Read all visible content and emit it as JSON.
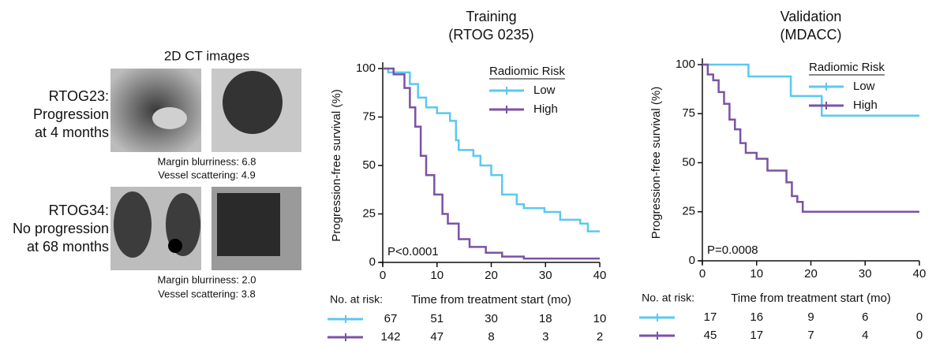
{
  "left_panel": {
    "title": "2D CT images",
    "cases": [
      {
        "label": [
          "RTOG23:",
          "Progression",
          "at 4 months"
        ],
        "features": [
          "Margin blurriness: 6.8",
          "Vessel scattering: 4.9"
        ]
      },
      {
        "label": [
          "RTOG34:",
          "No progression",
          "at 68 months"
        ],
        "features": [
          "Margin blurriness: 2.0",
          "Vessel scattering: 3.8"
        ]
      }
    ]
  },
  "chart_data": [
    {
      "type": "line",
      "step": true,
      "title": [
        "Training",
        "(RTOG 0235)"
      ],
      "x_label": "Time from treatment start (mo)",
      "y_label": "Progression-free survival (%)",
      "xlim": [
        0,
        40
      ],
      "ylim": [
        0,
        100
      ],
      "xticks": [
        0,
        10,
        20,
        30,
        40
      ],
      "yticks": [
        0,
        25,
        50,
        75,
        100
      ],
      "legend_title": "Radiomic Risk",
      "annotation": "P<0.0001",
      "series": [
        {
          "name": "Low",
          "color": "#5bc8f0",
          "x": [
            0,
            1,
            1,
            5,
            5,
            6.5,
            6.5,
            8,
            8,
            10,
            10,
            12.4,
            12.4,
            13.5,
            13.5,
            14,
            14,
            16.7,
            16.7,
            18,
            18,
            20,
            20,
            22,
            22,
            24.7,
            24.7,
            26,
            26,
            29.8,
            29.8,
            32.7,
            32.7,
            36.4,
            36.4,
            37.8,
            37.8,
            40
          ],
          "values": [
            100,
            100,
            98,
            98,
            92,
            92,
            85,
            85,
            80,
            80,
            77,
            77,
            73,
            73,
            63,
            63,
            58,
            58,
            55,
            55,
            50,
            50,
            45,
            45,
            35,
            35,
            30,
            30,
            28,
            28,
            26,
            26,
            22,
            22,
            20,
            20,
            16,
            16
          ]
        },
        {
          "name": "High",
          "color": "#7b52a6",
          "x": [
            0,
            2,
            2,
            4,
            4,
            5,
            5,
            6,
            6,
            7,
            7,
            8,
            8,
            9.5,
            9.5,
            11,
            11,
            12,
            12,
            14,
            14,
            16,
            16,
            19,
            19,
            22,
            22,
            26,
            26,
            40
          ],
          "values": [
            100,
            100,
            97,
            97,
            90,
            90,
            80,
            80,
            70,
            70,
            55,
            55,
            45,
            45,
            35,
            35,
            25,
            25,
            20,
            20,
            12,
            12,
            8,
            8,
            5,
            5,
            3,
            3,
            2,
            2
          ]
        }
      ],
      "risk_table": {
        "label": "No. at risk:",
        "rows": [
          [
            67,
            51,
            30,
            18,
            10
          ],
          [
            142,
            47,
            8,
            3,
            2
          ]
        ]
      }
    },
    {
      "type": "line",
      "step": true,
      "title": [
        "Validation",
        "(MDACC)"
      ],
      "x_label": "Time from treatment start (mo)",
      "y_label": "Progression-free survival (%)",
      "xlim": [
        0,
        40
      ],
      "ylim": [
        0,
        100
      ],
      "xticks": [
        0,
        10,
        20,
        30,
        40
      ],
      "yticks": [
        0,
        25,
        50,
        75,
        100
      ],
      "legend_title": "Radiomic Risk",
      "annotation": "P=0.0008",
      "series": [
        {
          "name": "Low",
          "color": "#5bc8f0",
          "x": [
            0,
            8.5,
            8.5,
            16.3,
            16.3,
            22,
            22,
            40
          ],
          "values": [
            100,
            100,
            94,
            94,
            84,
            84,
            74,
            74
          ]
        },
        {
          "name": "High",
          "color": "#7b52a6",
          "x": [
            0,
            1,
            1,
            2,
            2,
            3,
            3,
            4,
            4,
            5,
            5,
            6,
            6,
            7,
            7,
            8,
            8,
            10,
            10,
            12,
            12,
            15.5,
            15.5,
            16.5,
            16.5,
            17.5,
            17.5,
            18.5,
            18.5,
            40
          ],
          "values": [
            100,
            100,
            95,
            95,
            92,
            92,
            86,
            86,
            80,
            80,
            72,
            72,
            67,
            67,
            60,
            60,
            55,
            55,
            52,
            52,
            46,
            46,
            40,
            40,
            33,
            33,
            30,
            30,
            25,
            25
          ]
        }
      ],
      "risk_table": {
        "label": "No. at risk:",
        "rows": [
          [
            17,
            16,
            9,
            6,
            0
          ],
          [
            45,
            17,
            7,
            4,
            0
          ]
        ]
      }
    }
  ]
}
